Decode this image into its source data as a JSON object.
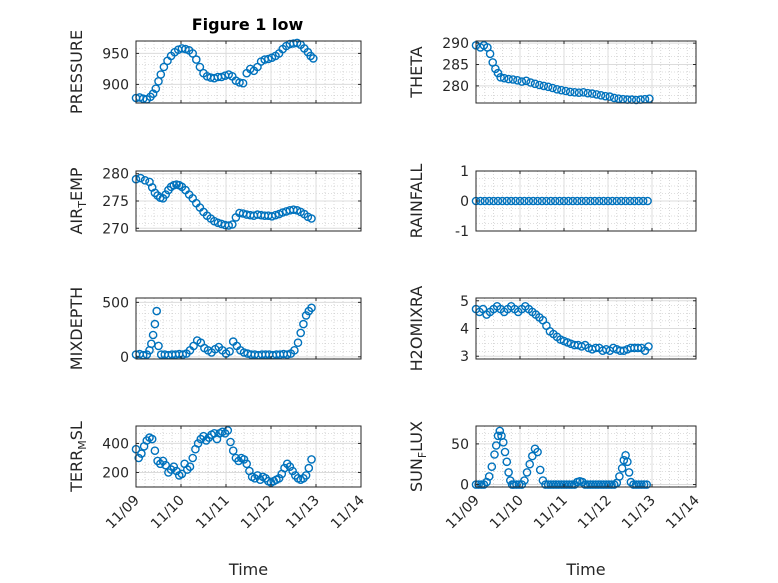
{
  "figure": {
    "title": "Figure 1 low",
    "xlabel": "Time",
    "x_tick_labels": [
      "11/09",
      "11/10",
      "11/11",
      "11/12",
      "11/13",
      "11/14"
    ]
  },
  "chart_data": [
    {
      "type": "scatter",
      "title": "Figure 1 low",
      "xlabel": "",
      "ylabel": {
        "main": "PRESSURE",
        "sub": ""
      },
      "yticks": [
        900,
        950
      ],
      "ylim": [
        870,
        970
      ],
      "xlim": [
        0,
        5
      ],
      "grid": true,
      "x": [
        0.0,
        0.08,
        0.16,
        0.24,
        0.32,
        0.38,
        0.44,
        0.5,
        0.55,
        0.62,
        0.7,
        0.78,
        0.86,
        0.94,
        1.02,
        1.1,
        1.18,
        1.26,
        1.34,
        1.42,
        1.5,
        1.58,
        1.66,
        1.74,
        1.82,
        1.9,
        1.98,
        2.06,
        2.14,
        2.22,
        2.3,
        2.38,
        2.46,
        2.54,
        2.62,
        2.7,
        2.78,
        2.86,
        2.94,
        3.02,
        3.1,
        3.18,
        3.26,
        3.34,
        3.42,
        3.5,
        3.58,
        3.66,
        3.74,
        3.82,
        3.88,
        3.94
      ],
      "y": [
        878,
        879,
        877,
        876,
        880,
        885,
        893,
        905,
        916,
        928,
        938,
        946,
        952,
        956,
        958,
        957,
        955,
        950,
        940,
        928,
        918,
        913,
        911,
        910,
        912,
        912,
        914,
        916,
        913,
        906,
        903,
        902,
        918,
        925,
        922,
        928,
        937,
        940,
        941,
        943,
        946,
        950,
        957,
        962,
        965,
        966,
        967,
        964,
        958,
        952,
        946,
        942
      ]
    },
    {
      "type": "scatter",
      "title": "",
      "xlabel": "",
      "ylabel": {
        "main": "THETA",
        "sub": ""
      },
      "yticks": [
        280,
        285,
        290
      ],
      "ylim": [
        276,
        290.5
      ],
      "xlim": [
        0,
        5
      ],
      "grid": true,
      "x": [
        0.0,
        0.1,
        0.18,
        0.26,
        0.32,
        0.38,
        0.44,
        0.5,
        0.56,
        0.64,
        0.74,
        0.84,
        0.94,
        1.04,
        1.14,
        1.24,
        1.34,
        1.44,
        1.54,
        1.64,
        1.74,
        1.84,
        1.94,
        2.04,
        2.14,
        2.24,
        2.34,
        2.44,
        2.54,
        2.64,
        2.74,
        2.84,
        2.94,
        3.04,
        3.14,
        3.24,
        3.34,
        3.44,
        3.54,
        3.64,
        3.74,
        3.84,
        3.94
      ],
      "y": [
        289.5,
        289.0,
        289.5,
        289.0,
        287.5,
        285.5,
        284.0,
        283.0,
        282.0,
        281.8,
        281.6,
        281.5,
        281.3,
        281.0,
        281.2,
        280.8,
        280.5,
        280.2,
        280.0,
        279.8,
        279.5,
        279.2,
        279.0,
        278.8,
        278.6,
        278.5,
        278.4,
        278.5,
        278.3,
        278.2,
        278.0,
        277.8,
        277.6,
        277.5,
        277.2,
        277.0,
        276.9,
        276.8,
        276.8,
        276.7,
        276.8,
        276.9,
        277.0
      ]
    },
    {
      "type": "scatter",
      "title": "",
      "xlabel": "",
      "ylabel": {
        "main": "AIR",
        "sub": "T",
        "suffix": "EMP"
      },
      "yticks": [
        270,
        275,
        280
      ],
      "ylim": [
        269.5,
        280.5
      ],
      "xlim": [
        0,
        5
      ],
      "grid": true,
      "x": [
        0.0,
        0.1,
        0.2,
        0.3,
        0.36,
        0.42,
        0.48,
        0.54,
        0.6,
        0.66,
        0.72,
        0.78,
        0.84,
        0.9,
        0.96,
        1.02,
        1.1,
        1.18,
        1.26,
        1.34,
        1.42,
        1.5,
        1.58,
        1.66,
        1.74,
        1.82,
        1.9,
        1.98,
        2.06,
        2.14,
        2.22,
        2.3,
        2.38,
        2.46,
        2.54,
        2.62,
        2.7,
        2.78,
        2.86,
        2.94,
        3.02,
        3.1,
        3.18,
        3.26,
        3.34,
        3.42,
        3.5,
        3.58,
        3.66,
        3.74,
        3.82,
        3.9
      ],
      "y": [
        279.0,
        279.2,
        278.8,
        278.5,
        277.5,
        276.5,
        276.0,
        275.6,
        275.5,
        276.2,
        277.0,
        277.6,
        277.9,
        278.0,
        277.9,
        277.6,
        277.0,
        276.2,
        275.5,
        274.6,
        273.8,
        273.0,
        272.3,
        271.8,
        271.3,
        271.0,
        270.8,
        270.6,
        270.5,
        270.7,
        272.0,
        272.8,
        272.7,
        272.5,
        272.4,
        272.3,
        272.5,
        272.4,
        272.3,
        272.3,
        272.2,
        272.4,
        272.6,
        272.9,
        273.1,
        273.3,
        273.4,
        273.3,
        273.0,
        272.6,
        272.1,
        271.8
      ]
    },
    {
      "type": "scatter",
      "title": "",
      "xlabel": "",
      "ylabel": {
        "main": "RAINFALL",
        "sub": ""
      },
      "yticks": [
        -1,
        0,
        1
      ],
      "ylim": [
        -1,
        1
      ],
      "xlim": [
        0,
        5
      ],
      "grid": true,
      "x": [
        0.0,
        0.1,
        0.2,
        0.3,
        0.4,
        0.5,
        0.6,
        0.7,
        0.8,
        0.9,
        1.0,
        1.1,
        1.2,
        1.3,
        1.4,
        1.5,
        1.6,
        1.7,
        1.8,
        1.9,
        2.0,
        2.1,
        2.2,
        2.3,
        2.4,
        2.5,
        2.6,
        2.7,
        2.8,
        2.9,
        3.0,
        3.1,
        3.2,
        3.3,
        3.4,
        3.5,
        3.6,
        3.7,
        3.8,
        3.9
      ],
      "y": [
        0,
        0,
        0,
        0,
        0,
        0,
        0,
        0,
        0,
        0,
        0,
        0,
        0,
        0,
        0,
        0,
        0,
        0,
        0,
        0,
        0,
        0,
        0,
        0,
        0,
        0,
        0,
        0,
        0,
        0,
        0,
        0,
        0,
        0,
        0,
        0,
        0,
        0,
        0,
        0
      ]
    },
    {
      "type": "scatter",
      "title": "",
      "xlabel": "",
      "ylabel": {
        "main": "MIXDEPTH",
        "sub": ""
      },
      "yticks": [
        0,
        500
      ],
      "ylim": [
        -20,
        540
      ],
      "xlim": [
        0,
        5
      ],
      "grid": true,
      "x": [
        0.0,
        0.08,
        0.16,
        0.24,
        0.3,
        0.34,
        0.38,
        0.42,
        0.46,
        0.5,
        0.56,
        0.64,
        0.72,
        0.8,
        0.88,
        0.96,
        1.04,
        1.12,
        1.2,
        1.28,
        1.36,
        1.44,
        1.52,
        1.6,
        1.68,
        1.76,
        1.84,
        1.92,
        2.0,
        2.08,
        2.16,
        2.24,
        2.32,
        2.4,
        2.48,
        2.56,
        2.64,
        2.72,
        2.8,
        2.88,
        2.96,
        3.04,
        3.12,
        3.2,
        3.28,
        3.36,
        3.44,
        3.52,
        3.6,
        3.66,
        3.72,
        3.78,
        3.84,
        3.9
      ],
      "y": [
        20,
        25,
        15,
        20,
        60,
        120,
        200,
        300,
        420,
        100,
        20,
        20,
        15,
        20,
        20,
        25,
        20,
        30,
        60,
        100,
        150,
        130,
        80,
        60,
        40,
        70,
        90,
        60,
        30,
        50,
        140,
        100,
        60,
        40,
        30,
        20,
        20,
        15,
        20,
        20,
        20,
        15,
        20,
        20,
        25,
        20,
        30,
        60,
        130,
        220,
        300,
        380,
        420,
        450
      ]
    },
    {
      "type": "scatter",
      "title": "",
      "xlabel": "",
      "ylabel": {
        "main": "H2OMIXRA",
        "sub": ""
      },
      "yticks": [
        3,
        4,
        5
      ],
      "ylim": [
        2.9,
        5.1
      ],
      "xlim": [
        0,
        5
      ],
      "grid": true,
      "x": [
        0.0,
        0.08,
        0.16,
        0.24,
        0.32,
        0.4,
        0.48,
        0.56,
        0.64,
        0.72,
        0.8,
        0.88,
        0.96,
        1.04,
        1.12,
        1.2,
        1.28,
        1.36,
        1.44,
        1.52,
        1.6,
        1.68,
        1.76,
        1.84,
        1.92,
        2.0,
        2.08,
        2.16,
        2.24,
        2.32,
        2.4,
        2.48,
        2.56,
        2.64,
        2.72,
        2.8,
        2.88,
        2.96,
        3.04,
        3.12,
        3.2,
        3.28,
        3.36,
        3.44,
        3.52,
        3.6,
        3.68,
        3.76,
        3.84,
        3.92
      ],
      "y": [
        4.7,
        4.6,
        4.7,
        4.5,
        4.6,
        4.7,
        4.8,
        4.7,
        4.6,
        4.7,
        4.8,
        4.7,
        4.6,
        4.7,
        4.8,
        4.7,
        4.6,
        4.5,
        4.4,
        4.3,
        4.1,
        3.9,
        3.8,
        3.7,
        3.6,
        3.55,
        3.5,
        3.45,
        3.4,
        3.4,
        3.35,
        3.4,
        3.3,
        3.25,
        3.3,
        3.3,
        3.2,
        3.25,
        3.2,
        3.3,
        3.25,
        3.2,
        3.2,
        3.25,
        3.3,
        3.3,
        3.3,
        3.3,
        3.2,
        3.35
      ]
    },
    {
      "type": "scatter",
      "title": "",
      "xlabel": "Time",
      "ylabel": {
        "main": "TERR",
        "sub": "M",
        "suffix": "SL"
      },
      "yticks": [
        200,
        400
      ],
      "ylim": [
        100,
        520
      ],
      "xlim": [
        0,
        5
      ],
      "grid": true,
      "x": [
        0.0,
        0.06,
        0.12,
        0.18,
        0.24,
        0.3,
        0.36,
        0.42,
        0.48,
        0.54,
        0.6,
        0.66,
        0.72,
        0.78,
        0.84,
        0.9,
        0.96,
        1.02,
        1.08,
        1.14,
        1.2,
        1.26,
        1.32,
        1.38,
        1.44,
        1.5,
        1.56,
        1.62,
        1.68,
        1.74,
        1.8,
        1.86,
        1.92,
        1.98,
        2.04,
        2.1,
        2.16,
        2.22,
        2.28,
        2.34,
        2.4,
        2.46,
        2.52,
        2.58,
        2.64,
        2.7,
        2.76,
        2.82,
        2.88,
        2.94,
        3.0,
        3.06,
        3.12,
        3.18,
        3.24,
        3.3,
        3.36,
        3.42,
        3.48,
        3.54,
        3.6,
        3.66,
        3.72,
        3.78,
        3.84,
        3.9
      ],
      "y": [
        360,
        300,
        330,
        380,
        420,
        440,
        430,
        350,
        280,
        260,
        280,
        250,
        200,
        220,
        240,
        210,
        180,
        190,
        260,
        220,
        240,
        300,
        360,
        400,
        430,
        450,
        420,
        440,
        460,
        470,
        430,
        470,
        480,
        470,
        490,
        410,
        350,
        300,
        280,
        300,
        290,
        260,
        210,
        170,
        160,
        180,
        150,
        170,
        160,
        140,
        130,
        140,
        150,
        160,
        190,
        230,
        260,
        240,
        210,
        180,
        160,
        150,
        160,
        180,
        230,
        290
      ]
    },
    {
      "type": "scatter",
      "title": "",
      "xlabel": "Time",
      "ylabel": {
        "main": "SUN",
        "sub": "F",
        "suffix": "LUX"
      },
      "yticks": [
        0,
        50
      ],
      "ylim": [
        -3,
        72
      ],
      "xlim": [
        0,
        5
      ],
      "grid": true,
      "x": [
        0.0,
        0.06,
        0.12,
        0.18,
        0.24,
        0.3,
        0.36,
        0.42,
        0.46,
        0.5,
        0.54,
        0.58,
        0.62,
        0.66,
        0.7,
        0.74,
        0.78,
        0.82,
        0.86,
        0.92,
        0.98,
        1.04,
        1.1,
        1.16,
        1.22,
        1.28,
        1.34,
        1.4,
        1.46,
        1.52,
        1.58,
        1.64,
        1.7,
        1.76,
        1.82,
        1.88,
        1.94,
        2.0,
        2.06,
        2.12,
        2.18,
        2.24,
        2.3,
        2.36,
        2.42,
        2.48,
        2.54,
        2.6,
        2.66,
        2.72,
        2.78,
        2.84,
        2.9,
        2.96,
        3.02,
        3.08,
        3.14,
        3.2,
        3.26,
        3.32,
        3.36,
        3.4,
        3.44,
        3.48,
        3.52,
        3.58,
        3.64,
        3.7,
        3.76,
        3.82,
        3.88
      ],
      "y": [
        0,
        0,
        0,
        0,
        3,
        10,
        22,
        37,
        48,
        60,
        66,
        60,
        52,
        40,
        28,
        15,
        5,
        0,
        0,
        0,
        0,
        0,
        5,
        15,
        25,
        35,
        44,
        40,
        18,
        5,
        0,
        0,
        0,
        0,
        0,
        0,
        0,
        0,
        0,
        0,
        0,
        0,
        3,
        4,
        3,
        0,
        0,
        0,
        0,
        0,
        0,
        0,
        0,
        0,
        0,
        0,
        0,
        2,
        10,
        20,
        30,
        36,
        28,
        15,
        3,
        0,
        0,
        0,
        0,
        0,
        0
      ]
    }
  ]
}
